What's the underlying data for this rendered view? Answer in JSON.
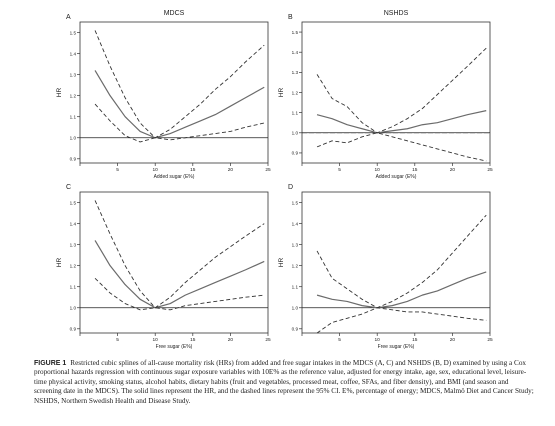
{
  "figure": {
    "caption_label": "FIGURE 1",
    "caption_text": "Restricted cubic splines of all-cause mortality risk (HRs) from added and free sugar intakes in the MDCS (A, C) and NSHDS (B, D) examined by using a Cox proportional hazards regression with continuous sugar exposure variables with 10E% as the reference value, adjusted for energy intake, age, sex, educational level, leisure-time physical activity, smoking status, alcohol habits, dietary habits (fruit and vegetables, processed meat, coffee, SFAs, and fiber density), and BMI (and season and screening date in the MDCS). The solid lines represent the HR, and the dashed lines represent the 95% CI. E%, percentage of energy; MDCS, Malmö Diet and Cancer Study; NSHDS, Northern Swedish Health and Disease Study."
  },
  "columns": [
    "MDCS",
    "NSHDS"
  ],
  "chart_data": [
    {
      "type": "line",
      "panel": "A",
      "column_title": "MDCS",
      "xlabel": "Added sugar (E%)",
      "ylabel": "HR",
      "xlim": [
        0,
        25
      ],
      "ylim": [
        0.88,
        1.55
      ],
      "xticks": [
        0,
        5,
        10,
        15,
        20,
        25
      ],
      "yticks": [
        0.9,
        1.0,
        1.1,
        1.2,
        1.3,
        1.4,
        1.5
      ],
      "ytick_labels": [
        "0.9",
        "1.0",
        "1.1",
        "1.2",
        "1.3",
        "1.4",
        "1.5"
      ],
      "reference_line": 1.0,
      "x": [
        2,
        4,
        6,
        8,
        10,
        12,
        14,
        16,
        18,
        20,
        22,
        24.5
      ],
      "series": [
        {
          "role": "hr",
          "values": [
            1.32,
            1.2,
            1.1,
            1.03,
            1.0,
            1.02,
            1.05,
            1.08,
            1.11,
            1.15,
            1.19,
            1.24
          ]
        },
        {
          "role": "ci_upper",
          "values": [
            1.51,
            1.34,
            1.19,
            1.07,
            1.0,
            1.04,
            1.1,
            1.16,
            1.23,
            1.29,
            1.36,
            1.44
          ]
        },
        {
          "role": "ci_lower",
          "values": [
            1.16,
            1.08,
            1.01,
            0.98,
            1.0,
            0.99,
            1.0,
            1.01,
            1.02,
            1.03,
            1.05,
            1.07
          ]
        }
      ]
    },
    {
      "type": "line",
      "panel": "B",
      "column_title": "NSHDS",
      "xlabel": "Added sugar (E%)",
      "ylabel": "HR",
      "xlim": [
        0,
        25
      ],
      "ylim": [
        0.85,
        1.55
      ],
      "xticks": [
        0,
        5,
        10,
        15,
        20,
        25
      ],
      "yticks": [
        0.9,
        1.0,
        1.1,
        1.2,
        1.3,
        1.4,
        1.5
      ],
      "ytick_labels": [
        "0.9",
        "1.0",
        "1.1",
        "1.2",
        "1.3",
        "1.4",
        "1.5"
      ],
      "reference_line": 1.0,
      "x": [
        2,
        4,
        6,
        8,
        10,
        12,
        14,
        16,
        18,
        20,
        22,
        24.5
      ],
      "series": [
        {
          "role": "hr",
          "values": [
            1.09,
            1.07,
            1.04,
            1.02,
            1.0,
            1.01,
            1.02,
            1.04,
            1.05,
            1.07,
            1.09,
            1.11
          ]
        },
        {
          "role": "ci_upper",
          "values": [
            1.29,
            1.17,
            1.13,
            1.05,
            1.0,
            1.03,
            1.07,
            1.12,
            1.19,
            1.26,
            1.33,
            1.42
          ]
        },
        {
          "role": "ci_lower",
          "values": [
            0.93,
            0.96,
            0.95,
            0.98,
            1.0,
            0.98,
            0.96,
            0.94,
            0.92,
            0.9,
            0.88,
            0.86
          ]
        }
      ]
    },
    {
      "type": "line",
      "panel": "C",
      "column_title": "MDCS",
      "xlabel": "Free sugar (E%)",
      "ylabel": "HR",
      "xlim": [
        0,
        25
      ],
      "ylim": [
        0.88,
        1.55
      ],
      "xticks": [
        0,
        5,
        10,
        15,
        20,
        25
      ],
      "yticks": [
        0.9,
        1.0,
        1.1,
        1.2,
        1.3,
        1.4,
        1.5
      ],
      "ytick_labels": [
        "0.9",
        "1.0",
        "1.1",
        "1.2",
        "1.3",
        "1.4",
        "1.5"
      ],
      "reference_line": 1.0,
      "x": [
        2,
        4,
        6,
        8,
        10,
        12,
        14,
        16,
        18,
        20,
        22,
        24.5
      ],
      "series": [
        {
          "role": "hr",
          "values": [
            1.32,
            1.2,
            1.11,
            1.04,
            1.0,
            1.02,
            1.06,
            1.09,
            1.12,
            1.15,
            1.18,
            1.22
          ]
        },
        {
          "role": "ci_upper",
          "values": [
            1.51,
            1.35,
            1.2,
            1.08,
            1.0,
            1.05,
            1.12,
            1.18,
            1.24,
            1.29,
            1.34,
            1.4
          ]
        },
        {
          "role": "ci_lower",
          "values": [
            1.14,
            1.07,
            1.02,
            0.99,
            1.0,
            0.99,
            1.01,
            1.02,
            1.03,
            1.04,
            1.05,
            1.06
          ]
        }
      ]
    },
    {
      "type": "line",
      "panel": "D",
      "column_title": "NSHDS",
      "xlabel": "Free sugar (E%)",
      "ylabel": "HR",
      "xlim": [
        0,
        25
      ],
      "ylim": [
        0.88,
        1.55
      ],
      "xticks": [
        0,
        5,
        10,
        15,
        20,
        25
      ],
      "yticks": [
        0.9,
        1.0,
        1.1,
        1.2,
        1.3,
        1.4,
        1.5
      ],
      "ytick_labels": [
        "0.9",
        "1.0",
        "1.1",
        "1.2",
        "1.3",
        "1.4",
        "1.5"
      ],
      "reference_line": 1.0,
      "x": [
        2,
        4,
        6,
        8,
        10,
        12,
        14,
        16,
        18,
        20,
        22,
        24.5
      ],
      "series": [
        {
          "role": "hr",
          "values": [
            1.06,
            1.04,
            1.03,
            1.01,
            1.0,
            1.01,
            1.03,
            1.06,
            1.08,
            1.11,
            1.14,
            1.17
          ]
        },
        {
          "role": "ci_upper",
          "values": [
            1.27,
            1.14,
            1.09,
            1.04,
            1.0,
            1.03,
            1.07,
            1.12,
            1.18,
            1.26,
            1.34,
            1.44
          ]
        },
        {
          "role": "ci_lower",
          "values": [
            0.88,
            0.93,
            0.95,
            0.97,
            1.0,
            0.99,
            0.98,
            0.98,
            0.97,
            0.96,
            0.95,
            0.94
          ]
        }
      ]
    }
  ]
}
